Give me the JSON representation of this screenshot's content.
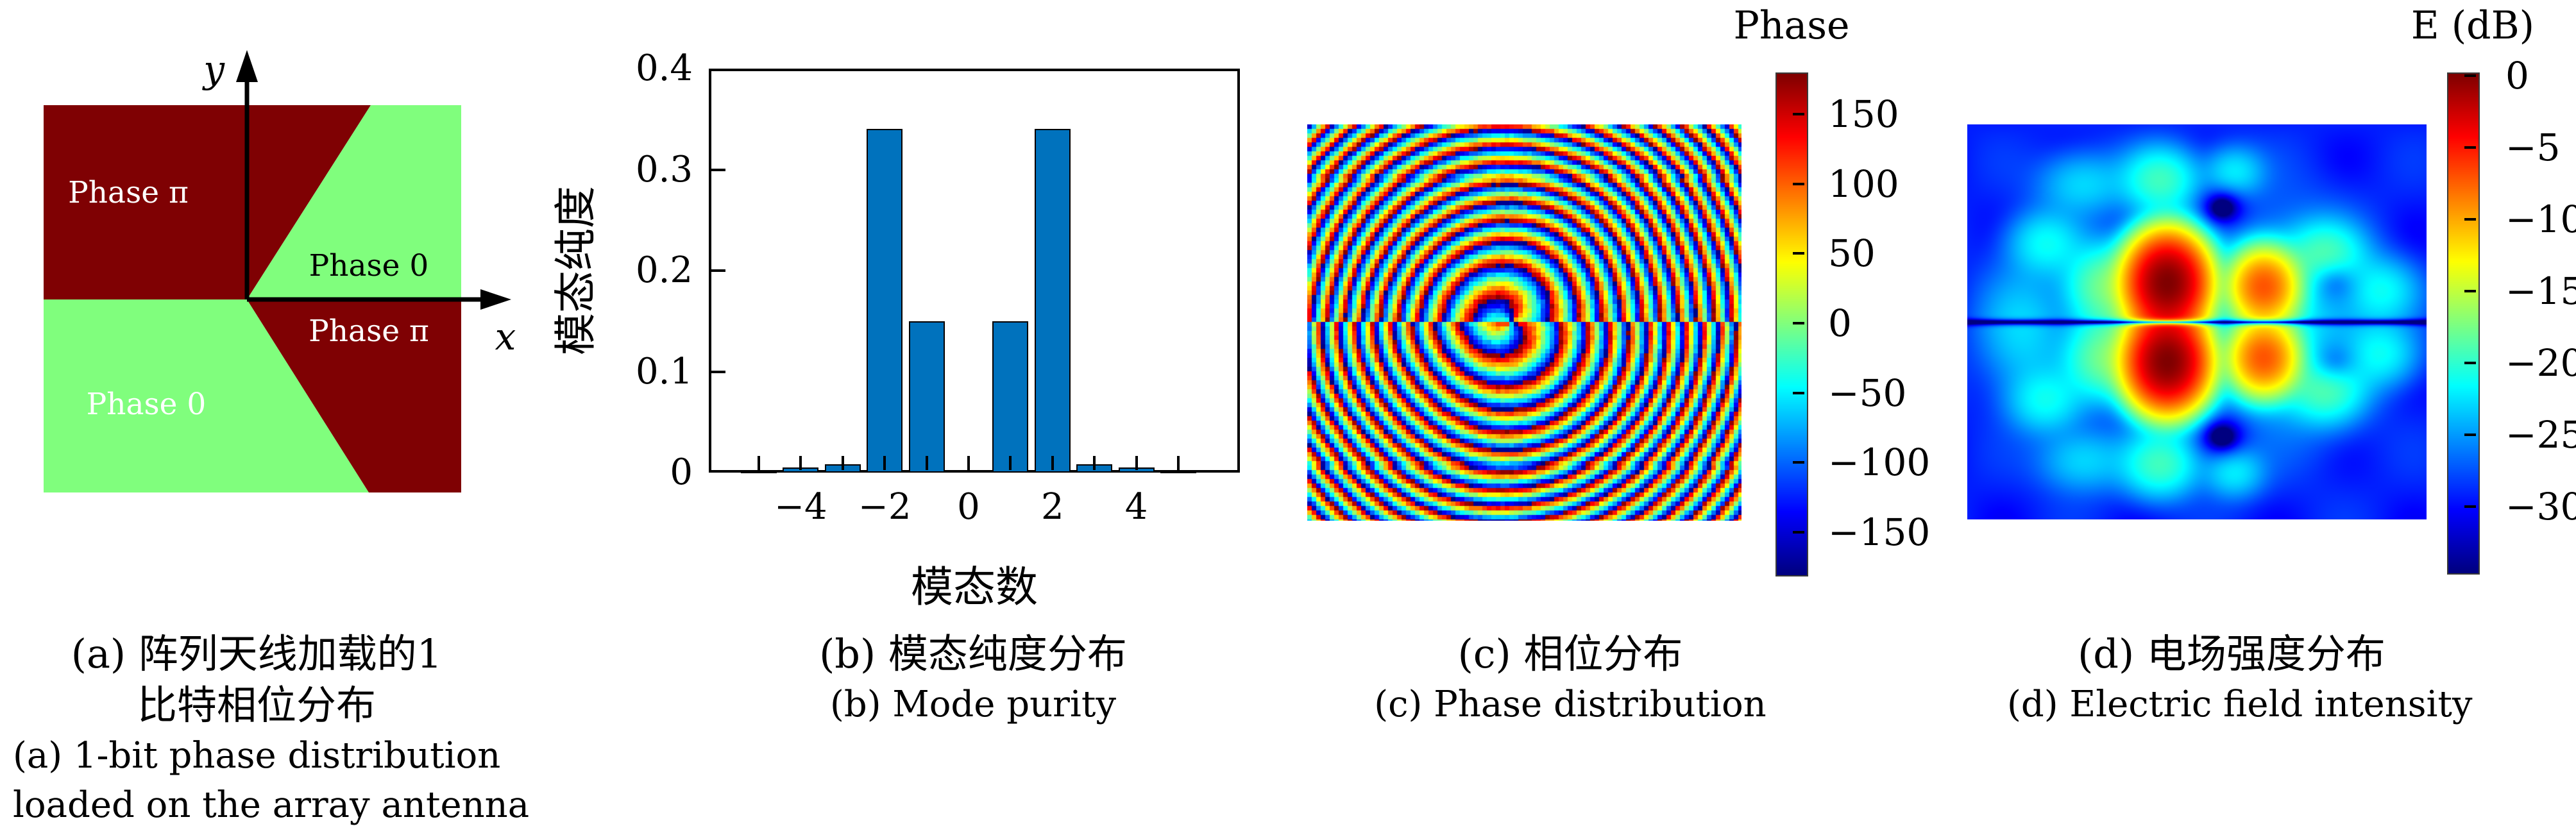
{
  "panels": {
    "a": {
      "labels": {
        "upper_left": "Phase π",
        "upper_right": "Phase 0",
        "lower_right": "Phase π",
        "lower_left": "Phase 0",
        "x_axis": "x",
        "y_axis": "y"
      },
      "colors": {
        "phase_pi": "#7f0103",
        "phase_0": "#80fe7d"
      },
      "caption": [
        "(a) 阵列天线加载的1",
        "比特相位分布",
        "(a) 1-bit phase distribution",
        "loaded on the array antenna"
      ]
    },
    "b": {
      "ylabel": "模态纯度",
      "xlabel": "模态数",
      "caption": [
        "(b) 模态纯度分布",
        "(b) Mode purity"
      ]
    },
    "c": {
      "colorbar_title": "Phase",
      "tick_labels": [
        "150",
        "100",
        "50",
        "0",
        "−50",
        "−100",
        "−150"
      ],
      "caption": [
        "(c) 相位分布",
        "(c) Phase distribution"
      ]
    },
    "d": {
      "colorbar_title": "E (dB)",
      "tick_labels": [
        "0",
        "−5",
        "−10",
        "−15",
        "−20",
        "−25",
        "−30"
      ],
      "caption": [
        "(d) 电场强度分布",
        "(d) Electric field intensity"
      ]
    }
  },
  "chart_data": [
    {
      "panel": "a",
      "type": "diagram",
      "title": "1-bit phase distribution loaded on the array antenna",
      "regions": [
        {
          "label": "Phase π",
          "color": "#7f0103",
          "position": "upper-left rectangle and upper wedge right of y-axis"
        },
        {
          "label": "Phase 0",
          "color": "#80fe7d",
          "position": "upper-right area beyond diagonal"
        },
        {
          "label": "Phase 0",
          "color": "#80fe7d",
          "position": "lower-left rectangle up to lower diagonal"
        },
        {
          "label": "Phase π",
          "color": "#7f0103",
          "position": "lower-right area beyond diagonal"
        }
      ],
      "axes": {
        "x": "x",
        "y": "y"
      }
    },
    {
      "panel": "b",
      "type": "bar",
      "xlabel": "模态数",
      "ylabel": "模态纯度",
      "categories": [
        -5,
        -4,
        -3,
        -2,
        -1,
        0,
        1,
        2,
        3,
        4,
        5
      ],
      "values": [
        0.002,
        0.005,
        0.008,
        0.34,
        0.15,
        0,
        0.15,
        0.34,
        0.008,
        0.005,
        0.002
      ],
      "ylim": [
        0,
        0.4
      ],
      "yticks": [
        0,
        0.1,
        0.2,
        0.3,
        0.4
      ],
      "xtick_values": [
        -4,
        -2,
        0,
        2,
        4
      ],
      "xtick_labels": [
        "−4",
        "−2",
        "0",
        "2",
        "4"
      ],
      "bar_color": "#0072bd",
      "grid": false
    },
    {
      "panel": "c",
      "type": "heatmap",
      "colormap": "jet",
      "colorbar_title": "Phase",
      "colorbar_ticks": [
        150,
        100,
        50,
        0,
        -50,
        -100,
        -150
      ],
      "value_range": [
        -180,
        180
      ],
      "description": "Wrapped-phase interference fringe pattern of the generated ±2-mode OAM beam; concentric quantized fringes with mirror discontinuity along the horizontal mid-line"
    },
    {
      "panel": "d",
      "type": "heatmap",
      "colormap": "jet",
      "colorbar_title": "E (dB)",
      "colorbar_ticks": [
        0,
        -5,
        -10,
        -15,
        -20,
        -25,
        -30
      ],
      "value_range": [
        -33,
        0
      ],
      "description": "Electric-field intensity: four lobes (two strong red, two weaker orange) symmetric about a dark horizontal null line on a blue background"
    }
  ]
}
